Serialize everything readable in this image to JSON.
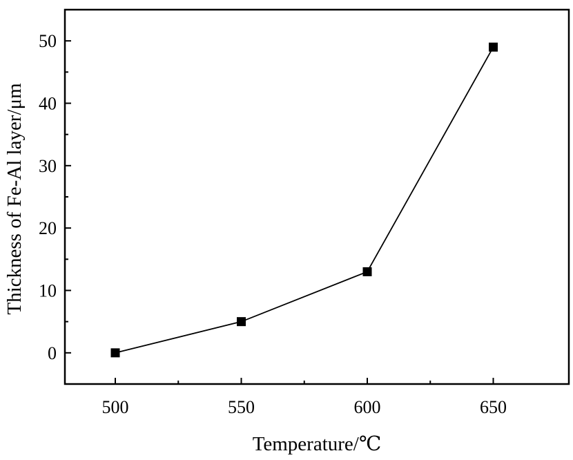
{
  "chart_data": {
    "type": "line",
    "xlabel": "Temperature/℃",
    "ylabel": "Thickness of Fe-Al layer/μm",
    "xlim": [
      480,
      680
    ],
    "ylim": [
      -5,
      55
    ],
    "x_ticks": [
      500,
      550,
      600,
      650
    ],
    "y_ticks": [
      0,
      10,
      20,
      30,
      40,
      50
    ],
    "x_minor_ticks": [
      525,
      575,
      625
    ],
    "y_minor_ticks": [
      -5,
      5,
      15,
      25,
      35,
      45
    ],
    "grid": false,
    "legend": "none",
    "marker": "square",
    "color": "#000000",
    "series": [
      {
        "x": [
          500,
          550,
          600,
          650
        ],
        "values": [
          0,
          5,
          13,
          49
        ]
      }
    ]
  }
}
